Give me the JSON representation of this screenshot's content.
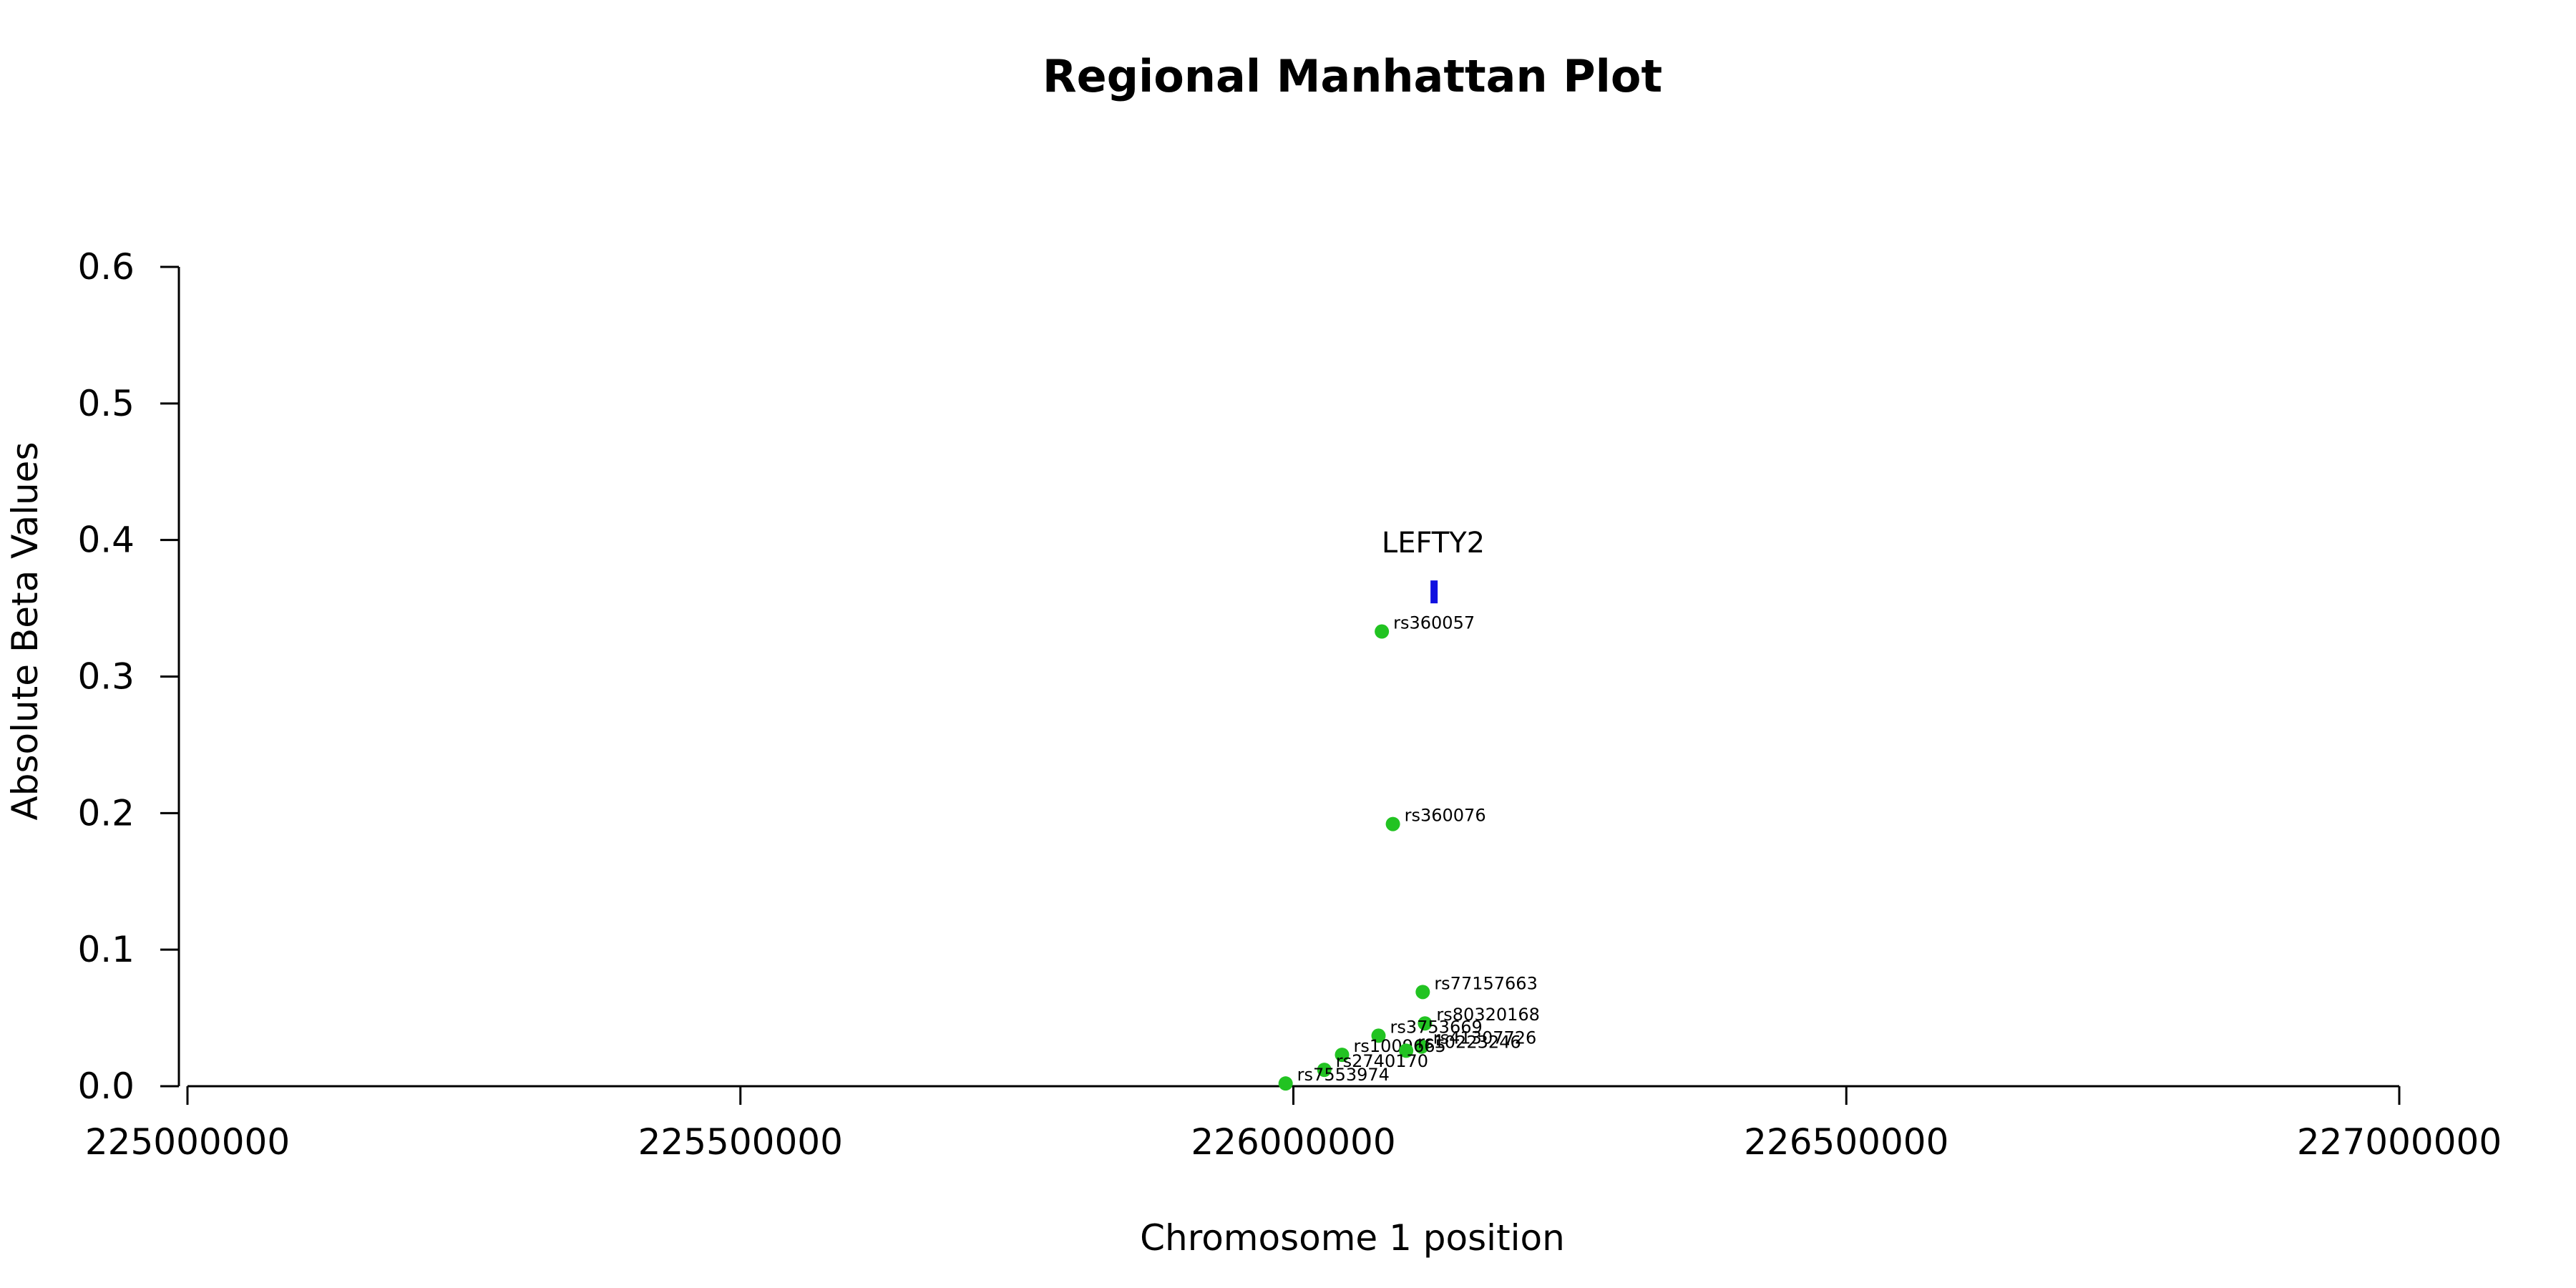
{
  "chart_data": {
    "type": "scatter",
    "title": "Regional Manhattan Plot",
    "xlabel": "Chromosome 1 position",
    "ylabel": "Absolute Beta Values",
    "xlim": [
      225000000,
      227000000
    ],
    "ylim": [
      0,
      0.6
    ],
    "xticks": [
      225000000,
      225500000,
      226000000,
      226500000,
      227000000
    ],
    "yticks": [
      0.0,
      0.1,
      0.2,
      0.3,
      0.4,
      0.5,
      0.6
    ],
    "grid": false,
    "point_color": "#22c322",
    "points": [
      {
        "label": "rs360057",
        "x": 226080000,
        "y": 0.333
      },
      {
        "label": "rs360076",
        "x": 226090000,
        "y": 0.192
      },
      {
        "label": "rs77157663",
        "x": 226117000,
        "y": 0.069
      },
      {
        "label": "rs80320168",
        "x": 226119000,
        "y": 0.046
      },
      {
        "label": "rs3753669",
        "x": 226077000,
        "y": 0.037
      },
      {
        "label": "rs41307726",
        "x": 226116000,
        "y": 0.029
      },
      {
        "label": "rs1009665",
        "x": 226044000,
        "y": 0.023
      },
      {
        "label": "rs10223246",
        "x": 226102000,
        "y": 0.026
      },
      {
        "label": "rs2740170",
        "x": 226028000,
        "y": 0.012
      },
      {
        "label": "rs7553974",
        "x": 225993000,
        "y": 0.002
      }
    ],
    "genes": [
      {
        "name": "LEFTY2",
        "start": 226124000,
        "end": 226129000,
        "y": 0.362,
        "color": "#1010e0"
      }
    ]
  }
}
